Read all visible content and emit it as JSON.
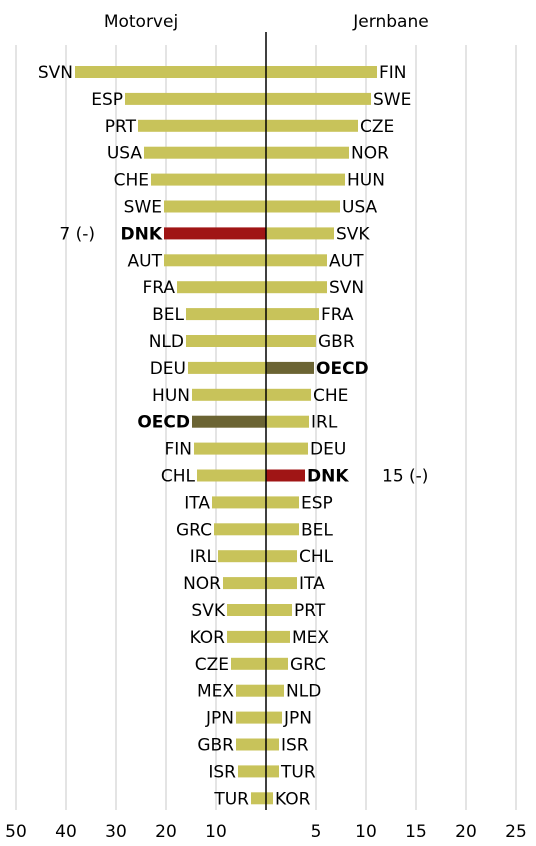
{
  "chart_data": [
    {
      "type": "bar",
      "orientation": "horizontal",
      "title": "Motorvej",
      "annotation": "7  (-)",
      "annotation_category": "DNK",
      "categories": [
        "SVN",
        "ESP",
        "PRT",
        "USA",
        "CHE",
        "SWE",
        "DNK",
        "AUT",
        "FRA",
        "BEL",
        "NLD",
        "DEU",
        "HUN",
        "OECD",
        "FIN",
        "CHL",
        "ITA",
        "GRC",
        "IRL",
        "NOR",
        "SVK",
        "KOR",
        "CZE",
        "MEX",
        "JPN",
        "GBR",
        "ISR",
        "TUR"
      ],
      "values": [
        38.2,
        28.2,
        25.6,
        24.4,
        23,
        20.4,
        20.4,
        20.4,
        17.8,
        16,
        16,
        15.6,
        14.8,
        14.8,
        14.4,
        13.8,
        10.8,
        10.4,
        9.6,
        8.6,
        7.8,
        7.8,
        7,
        6,
        6,
        6,
        5.6,
        3
      ],
      "color": "#c8c35a",
      "highlight": {
        "DNK": "#a01515",
        "OECD": "#6b6433"
      },
      "xlim": [
        50,
        0
      ],
      "xticks": [
        50,
        40,
        30,
        20,
        10
      ],
      "grid": true
    },
    {
      "type": "bar",
      "orientation": "horizontal",
      "title": "Jernbane",
      "annotation": "15  (-)",
      "annotation_category": "DNK",
      "categories": [
        "FIN",
        "SWE",
        "CZE",
        "NOR",
        "HUN",
        "USA",
        "SVK",
        "AUT",
        "SVN",
        "FRA",
        "GBR",
        "OECD",
        "CHE",
        "IRL",
        "DEU",
        "DNK",
        "ESP",
        "BEL",
        "CHL",
        "ITA",
        "PRT",
        "MEX",
        "GRC",
        "NLD",
        "JPN",
        "ISR",
        "TUR",
        "KOR"
      ],
      "values": [
        11.1,
        10.5,
        9.2,
        8.3,
        7.9,
        7.4,
        6.8,
        6.1,
        6.1,
        5.3,
        5,
        4.8,
        4.5,
        4.3,
        4.2,
        3.9,
        3.3,
        3.3,
        3.1,
        3.1,
        2.6,
        2.4,
        2.2,
        1.8,
        1.6,
        1.3,
        1.3,
        0.7
      ],
      "color": "#c8c35a",
      "highlight": {
        "DNK": "#a01515",
        "OECD": "#6b6433"
      },
      "xlim": [
        0,
        25
      ],
      "xticks": [
        5,
        10,
        15,
        20,
        25
      ],
      "grid": true
    }
  ]
}
